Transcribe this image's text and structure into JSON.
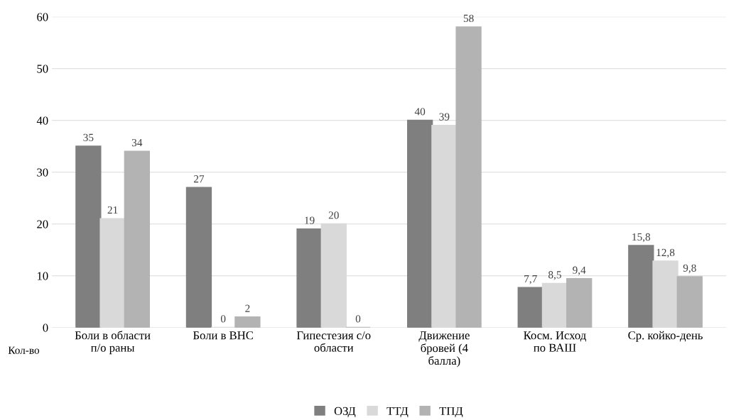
{
  "chart_data": {
    "type": "bar",
    "categories": [
      "Боли в области\nп/о раны",
      "Боли в ВНС",
      "Гипестезия с/о\nобласти",
      "Движение\nбровей (4\nбалла)",
      "Косм. Исход\nпо ВАШ",
      "Ср. койко-день"
    ],
    "series": [
      {
        "name": "ОЗД",
        "color": "#7f7f7f",
        "values": [
          35,
          27,
          19,
          40,
          7.7,
          15.8
        ],
        "value_labels": [
          "35",
          "27",
          "19",
          "40",
          "7,7",
          "15,8"
        ]
      },
      {
        "name": "ТТД",
        "color": "#d9d9d9",
        "values": [
          21,
          0,
          20,
          39,
          8.5,
          12.8
        ],
        "value_labels": [
          "21",
          "0",
          "20",
          "39",
          "8,5",
          "12,8"
        ]
      },
      {
        "name": "ТПД",
        "color": "#b3b3b3",
        "values": [
          34,
          2,
          0,
          58,
          9.4,
          9.8
        ],
        "value_labels": [
          "34",
          "2",
          "0",
          "58",
          "9,4",
          "9,8"
        ]
      }
    ],
    "ylabel": "Кол-во",
    "ylim": [
      0,
      60
    ],
    "yticks": [
      0,
      10,
      20,
      30,
      40,
      50,
      60
    ],
    "grid": "y",
    "legend": "bottom"
  }
}
